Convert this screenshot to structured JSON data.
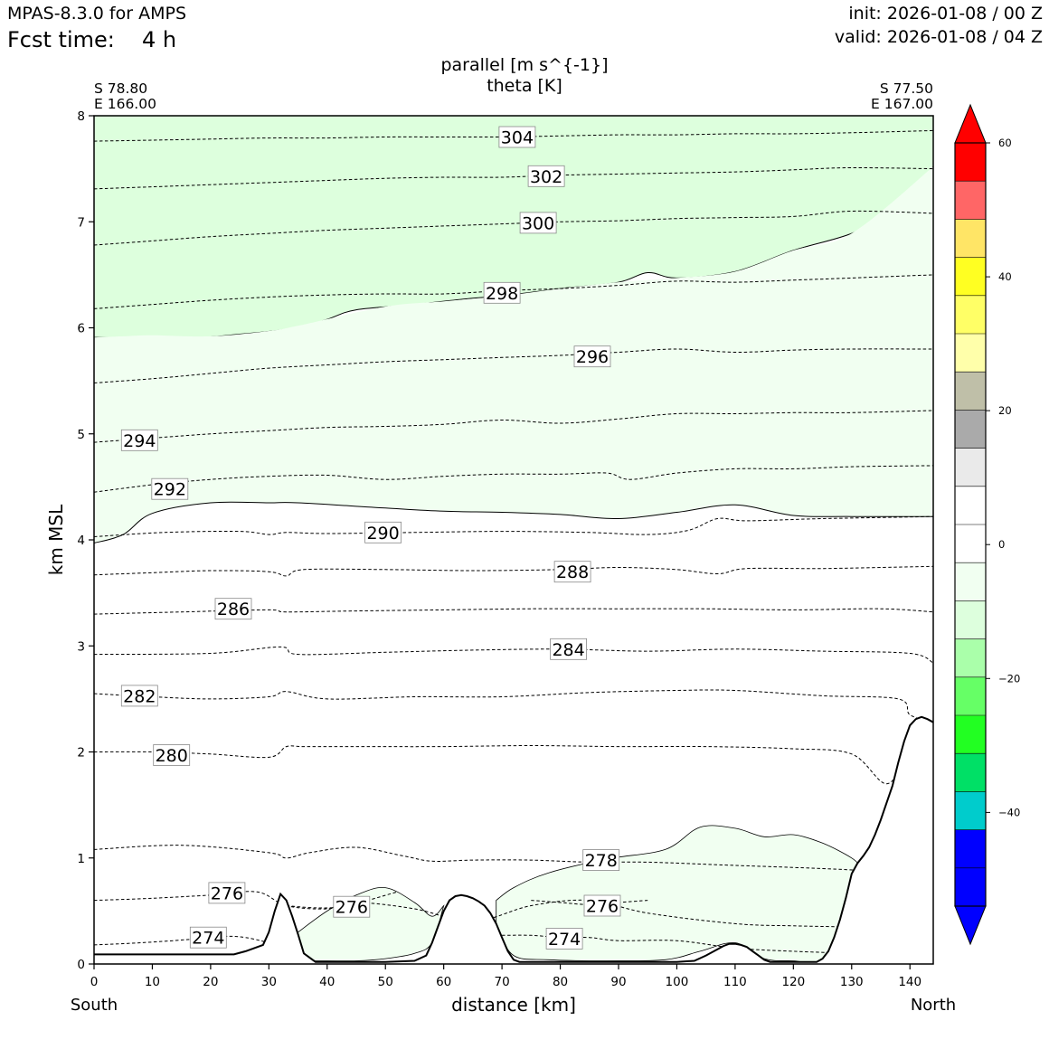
{
  "header": {
    "model": "MPAS-8.3.0 for AMPS",
    "fcst_label": "Fcst time:",
    "fcst_value": "4 h",
    "init": "init: 2026-01-08 / 00 Z",
    "valid": "valid: 2026-01-08 / 04 Z"
  },
  "chart_data": {
    "type": "cross-section contour",
    "title_line1": "parallel [m s^{-1}]",
    "title_line2": "theta [K]",
    "xlabel": "distance [km]",
    "ylabel": "km MSL",
    "xlim": [
      0,
      144
    ],
    "ylim": [
      0,
      8
    ],
    "x_ticks": [
      "0",
      "10",
      "20",
      "30",
      "40",
      "50",
      "60",
      "70",
      "80",
      "90",
      "100",
      "110",
      "120",
      "130",
      "140"
    ],
    "y_ticks": [
      "0",
      "1",
      "2",
      "3",
      "4",
      "5",
      "6",
      "7",
      "8"
    ],
    "left_end": {
      "lat": "S 78.80",
      "lon": "E 166.00",
      "label": "South"
    },
    "right_end": {
      "lat": "S 77.50",
      "lon": "E 167.00",
      "label": "North"
    },
    "colorbar": {
      "tick_labels": [
        "60",
        "40",
        "20",
        "0",
        "−20",
        "−40"
      ],
      "colors": [
        "#0000ff",
        "#0000ff",
        "#00cccc",
        "#00e066",
        "#22ff22",
        "#66ff66",
        "#aaffaa",
        "#ddffdd",
        "#f1fff1",
        "#ffffff",
        "#ffffff",
        "#eaeaea",
        "#aaaaaa",
        "#bfbfa8",
        "#ffffaa",
        "#ffff66",
        "#ffff22",
        "#ffe566",
        "#ff6666",
        "#ff0000"
      ],
      "under_color": "#0000ff",
      "over_color": "#ff0000"
    },
    "shading": [
      {
        "name": "parallel -10 to -5",
        "color": "#ddffdd",
        "x": [
          0,
          15,
          25,
          35,
          40,
          45,
          55,
          65,
          70,
          80,
          90,
          95,
          100,
          110,
          120,
          130,
          137,
          142,
          144
        ],
        "top": [
          8,
          8,
          8,
          8,
          8,
          8,
          8,
          8,
          8,
          8,
          8,
          8,
          8,
          8,
          8,
          8,
          8,
          8,
          8
        ],
        "bottom": [
          5.91,
          5.9,
          5.94,
          6.0,
          6.08,
          6.17,
          6.22,
          6.28,
          6.3,
          6.37,
          6.43,
          6.52,
          6.47,
          6.53,
          6.73,
          6.89,
          7.1,
          7.35,
          7.52
        ]
      },
      {
        "name": "parallel -5 to 0 aloft",
        "color": "#f1fff1",
        "x": [
          0,
          5,
          10,
          20,
          30,
          35,
          50,
          60,
          70,
          80,
          90,
          100,
          110,
          120,
          130,
          144
        ],
        "top": [
          5.91,
          5.92,
          5.93,
          5.92,
          5.97,
          6.02,
          6.2,
          6.25,
          6.3,
          6.37,
          6.43,
          6.47,
          6.53,
          6.73,
          6.89,
          7.52
        ],
        "bottom": [
          3.97,
          4.05,
          4.25,
          4.35,
          4.35,
          4.35,
          4.3,
          4.27,
          4.26,
          4.24,
          4.2,
          4.26,
          4.33,
          4.23,
          4.22,
          4.22
        ]
      },
      {
        "name": "parallel -5 to 0 low level",
        "color": "#f1fff1",
        "x": [
          69,
          72,
          78,
          88,
          98,
          104,
          110,
          115,
          120,
          125,
          130,
          132,
          134
        ],
        "top": [
          0.6,
          0.72,
          0.86,
          0.99,
          1.08,
          1.29,
          1.28,
          1.2,
          1.22,
          1.14,
          1.0,
          0.9,
          0.86
        ],
        "bottom": [
          0.35,
          0.08,
          0.04,
          0.03,
          0.04,
          0.12,
          0.2,
          0.05,
          0.03,
          0.03,
          0.35,
          0.7,
          0.86
        ]
      },
      {
        "name": "parallel -5 to 0 valley",
        "color": "#f1fff1",
        "x": [
          35,
          40,
          45,
          50,
          55,
          58,
          60
        ],
        "top": [
          0.3,
          0.5,
          0.65,
          0.72,
          0.58,
          0.45,
          0.55
        ],
        "bottom": [
          0.03,
          0.03,
          0.03,
          0.05,
          0.1,
          0.2,
          0.55
        ]
      }
    ],
    "terrain": {
      "x": [
        0,
        10,
        20,
        24,
        26,
        29,
        30,
        31,
        32,
        33,
        34,
        35,
        36,
        38,
        40,
        45,
        50,
        55,
        57,
        58,
        59,
        60,
        61,
        62,
        63,
        64,
        65,
        66,
        67,
        68,
        69,
        70,
        71,
        72,
        73,
        75,
        80,
        90,
        100,
        103,
        105,
        107,
        108,
        109,
        110,
        111,
        112,
        113,
        114,
        115,
        116,
        118,
        120,
        122,
        124,
        125,
        126,
        127,
        128,
        129,
        130,
        131,
        132,
        133,
        134,
        135,
        136,
        137,
        138,
        139,
        140,
        141,
        142,
        143,
        144
      ],
      "z": [
        0.09,
        0.09,
        0.09,
        0.09,
        0.12,
        0.18,
        0.3,
        0.5,
        0.66,
        0.6,
        0.45,
        0.28,
        0.1,
        0.02,
        0.02,
        0.02,
        0.02,
        0.03,
        0.08,
        0.2,
        0.35,
        0.5,
        0.6,
        0.64,
        0.65,
        0.64,
        0.62,
        0.59,
        0.55,
        0.48,
        0.38,
        0.25,
        0.12,
        0.04,
        0.02,
        0.02,
        0.02,
        0.02,
        0.02,
        0.03,
        0.08,
        0.14,
        0.17,
        0.19,
        0.19,
        0.18,
        0.16,
        0.12,
        0.08,
        0.04,
        0.02,
        0.02,
        0.02,
        0.02,
        0.02,
        0.05,
        0.12,
        0.25,
        0.42,
        0.62,
        0.85,
        0.95,
        1.02,
        1.1,
        1.22,
        1.36,
        1.52,
        1.68,
        1.9,
        2.1,
        2.25,
        2.31,
        2.33,
        2.31,
        2.28
      ]
    },
    "contours": [
      {
        "label": "274",
        "x": [
          0,
          8,
          16,
          22,
          26,
          30
        ],
        "z": [
          0.18,
          0.2,
          0.23,
          0.26,
          0.25,
          0.2
        ],
        "label_x": 19.6,
        "label_z": 0.25
      },
      {
        "label": "274",
        "x": [
          70,
          75,
          80,
          85,
          90,
          100,
          110,
          120,
          130
        ],
        "z": [
          0.27,
          0.27,
          0.25,
          0.25,
          0.22,
          0.22,
          0.15,
          0.12,
          0.1
        ],
        "label_x": 80.7,
        "label_z": 0.24
      },
      {
        "label": "276",
        "x": [
          0,
          10,
          20,
          28,
          33,
          40,
          45,
          55,
          65,
          75,
          85,
          95,
          110,
          120,
          130
        ],
        "z": [
          0.6,
          0.62,
          0.65,
          0.68,
          0.55,
          0.52,
          0.58,
          0.52,
          0.4,
          0.55,
          0.6,
          0.48,
          0.38,
          0.36,
          0.35
        ],
        "label_x": 22.8,
        "label_z": 0.67
      },
      {
        "label": "276",
        "x": [
          33,
          38,
          43,
          47,
          52
        ],
        "z": [
          0.55,
          0.53,
          0.54,
          0.6,
          0.68
        ],
        "label_x": 44.2,
        "label_z": 0.54
      },
      {
        "label": "276",
        "x": [
          75,
          80,
          85,
          90,
          95
        ],
        "z": [
          0.6,
          0.58,
          0.56,
          0.58,
          0.6
        ],
        "label_x": 87.2,
        "label_z": 0.55
      },
      {
        "label": "278",
        "x": [
          0,
          15,
          30,
          33,
          37,
          45,
          53,
          58,
          65,
          75,
          85,
          95,
          110,
          125,
          132,
          134
        ],
        "z": [
          1.08,
          1.12,
          1.05,
          1.0,
          1.05,
          1.1,
          1.02,
          0.97,
          0.98,
          0.98,
          0.96,
          0.96,
          0.93,
          0.9,
          0.88,
          0.86
        ],
        "label_x": 87.0,
        "label_z": 0.98
      },
      {
        "label": "280",
        "x": [
          0,
          10,
          20,
          30,
          33,
          36,
          45,
          60,
          75,
          90,
          105,
          120,
          130,
          136,
          140,
          144
        ],
        "z": [
          2.0,
          2.0,
          1.98,
          1.95,
          2.05,
          2.05,
          2.05,
          2.05,
          2.06,
          2.05,
          2.05,
          2.03,
          1.98,
          1.7,
          1.98,
          2.0
        ],
        "label_x": 13.3,
        "label_z": 1.97
      },
      {
        "label": "282",
        "x": [
          0,
          10,
          20,
          30,
          33,
          40,
          55,
          70,
          85,
          100,
          110,
          125,
          138,
          140,
          144
        ],
        "z": [
          2.55,
          2.52,
          2.5,
          2.52,
          2.57,
          2.5,
          2.52,
          2.52,
          2.56,
          2.58,
          2.58,
          2.53,
          2.5,
          2.35,
          2.28
        ],
        "label_x": 7.8,
        "label_z": 2.53
      },
      {
        "label": "284",
        "x": [
          0,
          20,
          32,
          35,
          50,
          65,
          80,
          95,
          110,
          125,
          140,
          144
        ],
        "z": [
          2.92,
          2.93,
          2.99,
          2.92,
          2.94,
          2.96,
          2.97,
          2.95,
          2.97,
          2.95,
          2.93,
          2.84
        ],
        "label_x": 81.4,
        "label_z": 2.97
      },
      {
        "label": "286",
        "x": [
          0,
          15,
          30,
          33,
          45,
          60,
          75,
          90,
          105,
          120,
          135,
          144
        ],
        "z": [
          3.3,
          3.32,
          3.34,
          3.32,
          3.33,
          3.34,
          3.35,
          3.35,
          3.35,
          3.34,
          3.35,
          3.32
        ],
        "label_x": 23.9,
        "label_z": 3.35
      },
      {
        "label": "288",
        "x": [
          0,
          10,
          20,
          30,
          33,
          36,
          50,
          65,
          80,
          90,
          100,
          107,
          112,
          125,
          144
        ],
        "z": [
          3.67,
          3.69,
          3.71,
          3.7,
          3.66,
          3.72,
          3.72,
          3.71,
          3.72,
          3.74,
          3.72,
          3.68,
          3.73,
          3.73,
          3.75
        ],
        "label_x": 82.1,
        "label_z": 3.7
      },
      {
        "label": "290",
        "x": [
          0,
          12,
          25,
          30,
          33,
          40,
          55,
          70,
          85,
          95,
          102,
          107,
          112,
          125,
          144
        ],
        "z": [
          4.03,
          4.07,
          4.08,
          4.05,
          4.07,
          4.06,
          4.07,
          4.08,
          4.07,
          4.05,
          4.09,
          4.2,
          4.18,
          4.2,
          4.22
        ],
        "label_x": 49.6,
        "label_z": 4.07
      },
      {
        "label": "292",
        "x": [
          0,
          10,
          20,
          30,
          40,
          50,
          60,
          70,
          80,
          88,
          92,
          100,
          110,
          120,
          130,
          144
        ],
        "z": [
          4.45,
          4.52,
          4.57,
          4.6,
          4.61,
          4.57,
          4.6,
          4.62,
          4.62,
          4.63,
          4.57,
          4.63,
          4.67,
          4.67,
          4.69,
          4.7
        ],
        "label_x": 13.0,
        "label_z": 4.48
      },
      {
        "label": "294",
        "x": [
          0,
          10,
          20,
          30,
          40,
          50,
          60,
          70,
          80,
          90,
          100,
          110,
          120,
          130,
          144
        ],
        "z": [
          4.92,
          4.96,
          5.0,
          5.03,
          5.06,
          5.07,
          5.09,
          5.13,
          5.1,
          5.14,
          5.19,
          5.19,
          5.2,
          5.2,
          5.22
        ],
        "label_x": 7.8,
        "label_z": 4.94
      },
      {
        "label": "296",
        "x": [
          0,
          10,
          20,
          30,
          40,
          50,
          60,
          70,
          80,
          90,
          100,
          110,
          120,
          130,
          144
        ],
        "z": [
          5.48,
          5.52,
          5.57,
          5.62,
          5.65,
          5.68,
          5.7,
          5.72,
          5.74,
          5.77,
          5.8,
          5.77,
          5.79,
          5.8,
          5.8
        ],
        "label_x": 85.5,
        "label_z": 5.73
      },
      {
        "label": "298",
        "x": [
          0,
          10,
          20,
          30,
          40,
          50,
          60,
          70,
          80,
          90,
          100,
          110,
          120,
          130,
          144
        ],
        "z": [
          6.18,
          6.22,
          6.26,
          6.29,
          6.31,
          6.32,
          6.32,
          6.35,
          6.37,
          6.4,
          6.44,
          6.43,
          6.45,
          6.47,
          6.5
        ],
        "label_x": 70.0,
        "label_z": 6.33
      },
      {
        "label": "300",
        "x": [
          0,
          10,
          20,
          30,
          40,
          50,
          60,
          70,
          80,
          90,
          100,
          110,
          120,
          130,
          144
        ],
        "z": [
          6.78,
          6.82,
          6.86,
          6.89,
          6.92,
          6.94,
          6.96,
          6.98,
          7.0,
          7.01,
          7.03,
          7.04,
          7.05,
          7.1,
          7.08
        ],
        "label_x": 76.2,
        "label_z": 6.99
      },
      {
        "label": "302",
        "x": [
          0,
          10,
          20,
          30,
          40,
          50,
          60,
          70,
          80,
          90,
          100,
          110,
          120,
          130,
          144
        ],
        "z": [
          7.31,
          7.33,
          7.35,
          7.37,
          7.39,
          7.41,
          7.42,
          7.42,
          7.44,
          7.45,
          7.46,
          7.47,
          7.49,
          7.51,
          7.5
        ],
        "label_x": 77.6,
        "label_z": 7.43
      },
      {
        "label": "304",
        "x": [
          0,
          10,
          20,
          30,
          40,
          50,
          60,
          70,
          80,
          90,
          100,
          110,
          120,
          130,
          144
        ],
        "z": [
          7.76,
          7.77,
          7.78,
          7.79,
          7.79,
          7.8,
          7.8,
          7.8,
          7.81,
          7.82,
          7.82,
          7.83,
          7.83,
          7.84,
          7.86
        ],
        "label_x": 72.6,
        "label_z": 7.8
      }
    ]
  }
}
